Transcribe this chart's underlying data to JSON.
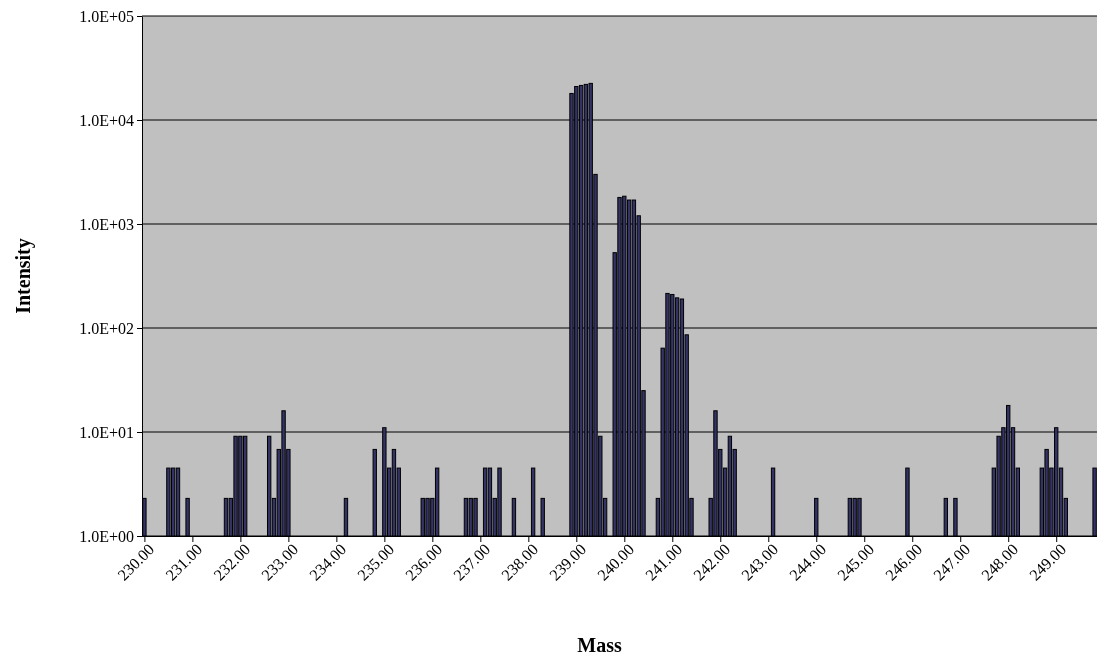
{
  "chart_data": {
    "type": "bar",
    "xlabel": "Mass",
    "ylabel": "Intensity",
    "log": "y",
    "grid": "y",
    "color": "#333366",
    "x": [
      230.0,
      230.5,
      230.6,
      230.7,
      230.9,
      231.7,
      231.8,
      231.9,
      232.0,
      232.1,
      232.6,
      232.7,
      232.8,
      232.9,
      233.0,
      234.2,
      234.8,
      235.0,
      235.1,
      235.2,
      235.3,
      235.8,
      235.9,
      236.0,
      236.1,
      236.7,
      236.8,
      236.9,
      237.1,
      237.2,
      237.3,
      237.4,
      237.7,
      238.1,
      238.3,
      238.9,
      239.0,
      239.1,
      239.2,
      239.3,
      239.4,
      239.5,
      239.6,
      239.8,
      239.9,
      240.0,
      240.1,
      240.2,
      240.3,
      240.4,
      240.7,
      240.8,
      240.9,
      241.0,
      241.1,
      241.2,
      241.3,
      241.4,
      241.8,
      241.9,
      242.0,
      242.1,
      242.2,
      242.3,
      243.1,
      244.0,
      244.7,
      244.8,
      244.9,
      245.9,
      246.7,
      246.9,
      247.7,
      247.8,
      247.9,
      248.0,
      248.1,
      248.2,
      248.7,
      248.8,
      248.9,
      249.0,
      249.1,
      249.2,
      249.8
    ],
    "values": [
      2.3,
      4.5,
      4.5,
      4.5,
      2.3,
      2.3,
      2.3,
      9.1,
      9.1,
      9.1,
      9.1,
      2.3,
      6.8,
      16,
      6.8,
      2.3,
      6.8,
      11,
      4.5,
      6.8,
      4.5,
      2.3,
      2.3,
      2.3,
      4.5,
      2.3,
      2.3,
      2.3,
      4.5,
      4.5,
      2.3,
      4.5,
      2.3,
      4.5,
      2.3,
      18000,
      21000,
      21500,
      22000,
      22500,
      3000,
      9.1,
      2.3,
      530,
      1800,
      1850,
      1700,
      1700,
      1200,
      25,
      2.3,
      64,
      215,
      210,
      195,
      190,
      86,
      2.3,
      2.3,
      16,
      6.8,
      4.5,
      9.1,
      6.8,
      4.5,
      2.3,
      2.3,
      2.3,
      2.3,
      4.5,
      2.3,
      2.3,
      4.5,
      9.1,
      11,
      18,
      11,
      4.5,
      4.5,
      6.8,
      4.5,
      11,
      4.5,
      2.3,
      4.5
    ],
    "xlim": [
      229.95,
      249.85
    ],
    "xticks": [
      {
        "value": 230,
        "label": "230.00"
      },
      {
        "value": 231,
        "label": "231.00"
      },
      {
        "value": 232,
        "label": "232.00"
      },
      {
        "value": 233,
        "label": "233.00"
      },
      {
        "value": 234,
        "label": "234.00"
      },
      {
        "value": 235,
        "label": "235.00"
      },
      {
        "value": 236,
        "label": "236.00"
      },
      {
        "value": 237,
        "label": "237.00"
      },
      {
        "value": 238,
        "label": "238.00"
      },
      {
        "value": 239,
        "label": "239.00"
      },
      {
        "value": 240,
        "label": "240.00"
      },
      {
        "value": 241,
        "label": "241.00"
      },
      {
        "value": 242,
        "label": "242.00"
      },
      {
        "value": 243,
        "label": "243.00"
      },
      {
        "value": 244,
        "label": "244.00"
      },
      {
        "value": 245,
        "label": "245.00"
      },
      {
        "value": 246,
        "label": "246.00"
      },
      {
        "value": 247,
        "label": "247.00"
      },
      {
        "value": 248,
        "label": "248.00"
      },
      {
        "value": 249,
        "label": "249.00"
      }
    ],
    "ylim": [
      1,
      100000
    ],
    "yticks": [
      {
        "value": 1,
        "label": "1.0E+00"
      },
      {
        "value": 10,
        "label": "1.0E+01"
      },
      {
        "value": 100,
        "label": "1.0E+02"
      },
      {
        "value": 1000,
        "label": "1.0E+03"
      },
      {
        "value": 10000,
        "label": "1.0E+04"
      },
      {
        "value": 100000,
        "label": "1.0E+05"
      }
    ]
  }
}
